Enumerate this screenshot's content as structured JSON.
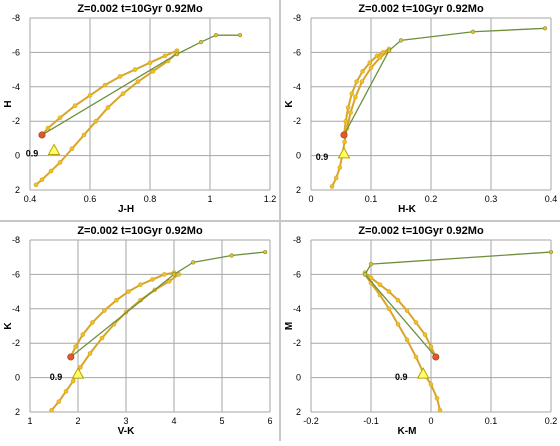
{
  "colors": {
    "track": "#d7a52a",
    "track_points": "#f0c020",
    "line": "#6f8f3d",
    "grid": "#a6a6a6",
    "start_marker": "#e05a2a",
    "tri": "#ffff66",
    "tri_stroke": "#b8a000"
  },
  "chart_data": [
    {
      "type": "scatter",
      "title": "Z=0.002  t=10Gyr 0.92Mo",
      "xlabel": "J-H",
      "ylabel": "H",
      "xlim": [
        0.4,
        1.2
      ],
      "ylim": [
        2,
        -8
      ],
      "xticks": [
        "0.4",
        "0.6",
        "0.8",
        "1",
        "1.2"
      ],
      "yticks": [
        "-8",
        "-6",
        "-4",
        "-2",
        "0",
        "2"
      ],
      "annotation": "0.9",
      "marker_point": [
        0.48,
        -0.3
      ],
      "start_point": [
        0.44,
        -1.2
      ],
      "upper_branch": {
        "x": [
          0.44,
          0.46,
          0.5,
          0.55,
          0.6,
          0.65,
          0.7,
          0.75,
          0.8,
          0.85,
          0.89
        ],
        "y": [
          -1.2,
          -1.6,
          -2.2,
          -2.9,
          -3.5,
          -4.1,
          -4.6,
          -5.0,
          -5.4,
          -5.8,
          -6.1
        ]
      },
      "lower_branch": {
        "x": [
          0.42,
          0.44,
          0.47,
          0.5,
          0.54,
          0.58,
          0.62,
          0.66,
          0.71,
          0.76,
          0.81,
          0.86,
          0.89
        ],
        "y": [
          1.7,
          1.4,
          0.9,
          0.4,
          -0.4,
          -1.2,
          -2.0,
          -2.8,
          -3.6,
          -4.3,
          -4.9,
          -5.5,
          -6.0
        ]
      },
      "green_line": {
        "x": [
          0.44,
          0.89,
          0.97,
          1.02,
          1.1
        ],
        "y": [
          -1.2,
          -5.9,
          -6.6,
          -7.0,
          -7.0
        ]
      }
    },
    {
      "type": "scatter",
      "title": "Z=0.002  t=10Gyr 0.92Mo",
      "xlabel": "H-K",
      "ylabel": "K",
      "xlim": [
        0,
        0.4
      ],
      "ylim": [
        2,
        -8
      ],
      "xticks": [
        "0",
        "0.1",
        "0.2",
        "0.3",
        "0.4"
      ],
      "yticks": [
        "-8",
        "-6",
        "-4",
        "-2",
        "0",
        "2"
      ],
      "annotation": "0.9",
      "marker_point": [
        0.055,
        -0.1
      ],
      "start_point": [
        0.055,
        -1.2
      ],
      "upper_branch": {
        "x": [
          0.055,
          0.058,
          0.062,
          0.068,
          0.076,
          0.086,
          0.098,
          0.11,
          0.12,
          0.13
        ],
        "y": [
          -1.2,
          -2.0,
          -2.8,
          -3.6,
          -4.3,
          -4.9,
          -5.4,
          -5.8,
          -6.0,
          -6.2
        ]
      },
      "lower_branch": {
        "x": [
          0.035,
          0.042,
          0.048,
          0.052,
          0.056,
          0.06,
          0.066,
          0.074,
          0.085,
          0.1,
          0.115,
          0.13
        ],
        "y": [
          1.8,
          1.3,
          0.7,
          0.0,
          -0.8,
          -1.6,
          -2.5,
          -3.4,
          -4.3,
          -5.1,
          -5.7,
          -6.1
        ]
      },
      "green_line": {
        "x": [
          0.055,
          0.13,
          0.15,
          0.27,
          0.39
        ],
        "y": [
          -1.2,
          -6.1,
          -6.7,
          -7.2,
          -7.4
        ]
      }
    },
    {
      "type": "scatter",
      "title": "Z=0.002  t=10Gyr 0.92Mo",
      "xlabel": "V-K",
      "ylabel": "K",
      "xlim": [
        1,
        6
      ],
      "ylim": [
        2,
        -8
      ],
      "xticks": [
        "1",
        "2",
        "3",
        "4",
        "5",
        "6"
      ],
      "yticks": [
        "-8",
        "-6",
        "-4",
        "-2",
        "0",
        "2"
      ],
      "annotation": "0.9",
      "marker_point": [
        2.0,
        -0.2
      ],
      "start_point": [
        1.85,
        -1.2
      ],
      "upper_branch": {
        "x": [
          1.85,
          1.95,
          2.1,
          2.3,
          2.55,
          2.8,
          3.05,
          3.3,
          3.55,
          3.8,
          4.0
        ],
        "y": [
          -1.2,
          -1.8,
          -2.5,
          -3.2,
          -3.9,
          -4.5,
          -5.0,
          -5.4,
          -5.7,
          -6.0,
          -6.1
        ]
      },
      "lower_branch": {
        "x": [
          1.45,
          1.6,
          1.75,
          1.9,
          2.05,
          2.25,
          2.5,
          2.75,
          3.0,
          3.3,
          3.6,
          3.9,
          4.1
        ],
        "y": [
          1.9,
          1.4,
          0.8,
          0.2,
          -0.6,
          -1.4,
          -2.3,
          -3.1,
          -3.8,
          -4.5,
          -5.1,
          -5.6,
          -6.0
        ]
      },
      "green_line": {
        "x": [
          1.85,
          4.0,
          4.4,
          5.2,
          5.9
        ],
        "y": [
          -1.2,
          -6.0,
          -6.7,
          -7.1,
          -7.3
        ]
      }
    },
    {
      "type": "scatter",
      "title": "Z=0.002  t=10Gyr 0.92Mo",
      "xlabel": "K-M",
      "ylabel": "M",
      "xlim": [
        -0.2,
        0.2
      ],
      "ylim": [
        2,
        -8
      ],
      "xticks": [
        "-0.2",
        "-0.1",
        "0",
        "0.1",
        "0.2"
      ],
      "yticks": [
        "-8",
        "-6",
        "-4",
        "-2",
        "0",
        "2"
      ],
      "annotation": "0.9",
      "marker_point": [
        -0.013,
        -0.2
      ],
      "start_point": [
        0.008,
        -1.2
      ],
      "upper_branch": {
        "x": [
          0.008,
          0.0,
          -0.01,
          -0.025,
          -0.04,
          -0.055,
          -0.07,
          -0.085,
          -0.1,
          -0.11
        ],
        "y": [
          -1.2,
          -1.8,
          -2.5,
          -3.2,
          -3.9,
          -4.5,
          -5.0,
          -5.4,
          -5.8,
          -6.1
        ]
      },
      "lower_branch": {
        "x": [
          0.015,
          0.01,
          0.0,
          -0.013,
          -0.025,
          -0.04,
          -0.055,
          -0.07,
          -0.085,
          -0.1,
          -0.11
        ],
        "y": [
          1.9,
          1.2,
          0.4,
          -0.3,
          -1.2,
          -2.2,
          -3.1,
          -4.0,
          -4.8,
          -5.5,
          -6.0
        ]
      },
      "green_line": {
        "x": [
          0.008,
          -0.11,
          -0.1,
          0.2
        ],
        "y": [
          -1.2,
          -6.0,
          -6.6,
          -7.3
        ]
      }
    }
  ]
}
